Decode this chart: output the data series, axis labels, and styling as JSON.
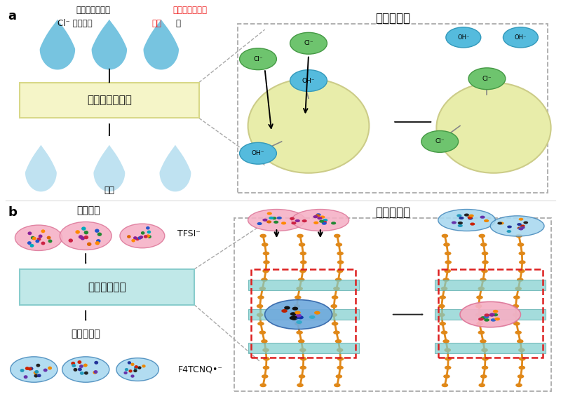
{
  "title_a": "阴离子交换",
  "title_b": "阴离子交换",
  "label_a": "a",
  "label_b": "b",
  "text_impure_jp": "不純物を含む水",
  "text_impure_cn": "（含杂质的水）",
  "text_cl_jp": "Cl",
  "text_cl_super": "-",
  "text_cl_rest": " イオン（",
  "text_cl_cn": "离子",
  "text_cl_rparen": "）",
  "text_resin": "阴离子交换树脂",
  "text_pure_water": "纯水",
  "text_ionic_liquid": "离子液体",
  "text_tfsi": "TFSI⁻",
  "text_semiconductor": "高分子半导体",
  "text_dopant": "掺杂剂分子",
  "text_f4tcnq": "F4TCNQ",
  "water_dark": "#6bbfde",
  "water_light": "#b8dff0",
  "resin_box_fill": "#f5f5c8",
  "resin_box_edge": "#d8d888",
  "semi_box_fill": "#c0e8e8",
  "semi_box_edge": "#88cccc",
  "cl_ball": "#6ec46e",
  "cl_ball_edge": "#449944",
  "oh_ball": "#55bbdd",
  "oh_ball_edge": "#3399bb",
  "resin_ball": "#e8edaa",
  "resin_ball_edge": "#cccc88",
  "arrow_dark": "#222222",
  "text_red": "#ee2222",
  "text_black": "#111111",
  "dash_color": "#aaaaaa",
  "bg": "#ffffff"
}
